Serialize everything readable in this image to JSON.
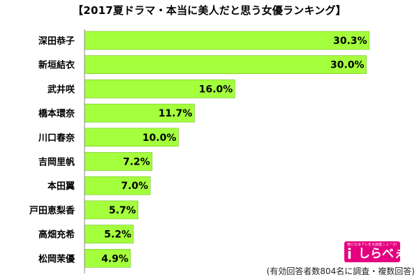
{
  "title": "【2017夏ドラマ・本当に美人だと思う女優ランキング】",
  "chart_data": {
    "type": "bar",
    "orientation": "horizontal",
    "title": "【2017夏ドラマ・本当に美人だと思う女優ランキング】",
    "categories": [
      "深田恭子",
      "新垣結衣",
      "武井咲",
      "橋本環奈",
      "川口春奈",
      "吉岡里帆",
      "本田翼",
      "戸田恵梨香",
      "高畑充希",
      "松岡茉優"
    ],
    "values": [
      30.3,
      30.0,
      16.0,
      11.7,
      10.0,
      7.2,
      7.0,
      5.7,
      5.2,
      4.9
    ],
    "value_labels": [
      "30.3%",
      "30.0%",
      "16.0%",
      "11.7%",
      "10.0%",
      "7.2%",
      "7.0%",
      "5.7%",
      "5.2%",
      "4.9%"
    ],
    "unit": "%",
    "xlim": [
      0,
      33
    ],
    "bar_color": "#a4ff3c",
    "bar_edge_color": "#6fc020"
  },
  "logo": {
    "tagline": "気になるアレを大調査ニュース!",
    "name": "しらべぇ",
    "icon": "i",
    "color": "#e4007f"
  },
  "footnote": "(有効回答者数804名に調査・複数回答)"
}
